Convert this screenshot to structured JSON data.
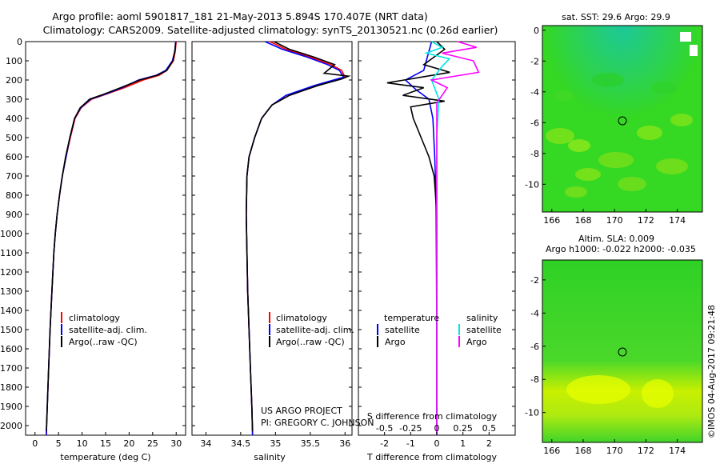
{
  "header": {
    "title_line1": "Argo profile: aoml 5901817_181 21-May-2013 5.894S 170.407E (NRT data)",
    "title_line2": "Climatology: CARS2009. Satellite-adjusted climatology: synTS_20130521.nc (0.26d earlier)"
  },
  "colors": {
    "climatology": "#ff0000",
    "satellite": "#0000ff",
    "argo": "#000000",
    "salinity_satellite": "#00e5e5",
    "salinity_argo": "#ff00ff"
  },
  "icons": {
    "legend_marker": "short-vertical-bar",
    "float_position": "circle-marker"
  },
  "panel_temperature": {
    "xlabel": "temperature (deg C)",
    "xticks": [
      "0",
      "5",
      "10",
      "15",
      "20",
      "25",
      "30"
    ],
    "yticks": [
      "0",
      "100",
      "200",
      "300",
      "400",
      "500",
      "600",
      "700",
      "800",
      "900",
      "1000",
      "1100",
      "1200",
      "1300",
      "1400",
      "1500",
      "1600",
      "1700",
      "1800",
      "1900",
      "2000"
    ],
    "legend": [
      "climatology",
      "satellite-adj. clim.",
      "Argo(..raw -QC)"
    ]
  },
  "panel_salinity": {
    "xlabel": "salinity",
    "xticks": [
      "34",
      "34.5",
      "35",
      "35.5",
      "36"
    ],
    "legend": [
      "climatology",
      "satellite-adj. clim.",
      "Argo(..raw -QC)"
    ],
    "credit_line1": "US ARGO PROJECT",
    "credit_line2": "PI: GREGORY C. JOHNSON"
  },
  "panel_difference": {
    "xlabel_bottom": "T difference from climatology",
    "xlabel_top": "S difference from climatology",
    "xticks_t": [
      "-2",
      "-1",
      "0",
      "1",
      "2"
    ],
    "xticks_s": [
      "-0.5",
      "-0.25",
      "0",
      "0.25",
      "0.5"
    ],
    "legend_temperature_title": "temperature",
    "legend_salinity_title": "salinity",
    "legend_temperature": [
      "satellite",
      "Argo"
    ],
    "legend_salinity": [
      "satellite",
      "Argo"
    ]
  },
  "map_sst": {
    "title": "sat. SST: 29.6  Argo: 29.9",
    "xticks": [
      "166",
      "168",
      "170",
      "172",
      "174"
    ],
    "yticks": [
      "0",
      "-2",
      "-4",
      "-6",
      "-8",
      "-10"
    ]
  },
  "map_sla": {
    "title_line1": "Altim. SLA: 0.009",
    "title_line2": "Argo h1000: -0.022 h2000: -0.035",
    "xticks": [
      "166",
      "168",
      "170",
      "172",
      "174"
    ],
    "yticks": [
      "-2",
      "-4",
      "-6",
      "-8",
      "-10"
    ]
  },
  "footer": {
    "timestamp": "©IMOS 04-Aug-2017 09:21:48"
  },
  "chart_data": [
    {
      "type": "line",
      "title": "",
      "xlabel": "temperature (deg C)",
      "ylabel": "",
      "xlim": [
        -2,
        32
      ],
      "ylim": [
        2050,
        0
      ],
      "series": [
        {
          "name": "climatology",
          "points": [
            [
              30,
              0
            ],
            [
              29.8,
              50
            ],
            [
              29.4,
              100
            ],
            [
              28,
              150
            ],
            [
              26.4,
              175
            ],
            [
              23,
              200
            ],
            [
              19,
              240
            ],
            [
              15,
              275
            ],
            [
              12,
              300
            ],
            [
              9.8,
              345
            ],
            [
              8.5,
              400
            ],
            [
              7.5,
              500
            ],
            [
              6.6,
              600
            ],
            [
              5.8,
              700
            ],
            [
              5.2,
              800
            ],
            [
              4.7,
              900
            ],
            [
              4.3,
              1000
            ],
            [
              4,
              1100
            ],
            [
              3.6,
              1300
            ],
            [
              3.2,
              1500
            ],
            [
              2.9,
              1700
            ],
            [
              2.6,
              1900
            ],
            [
              2.4,
              2050
            ]
          ]
        },
        {
          "name": "satellite-adj. clim.",
          "points": [
            [
              29.9,
              0
            ],
            [
              29.7,
              50
            ],
            [
              29.2,
              100
            ],
            [
              27.8,
              150
            ],
            [
              25.8,
              175
            ],
            [
              22,
              200
            ],
            [
              18.5,
              240
            ],
            [
              14.8,
              275
            ],
            [
              11.8,
              300
            ],
            [
              9.7,
              345
            ],
            [
              8.4,
              400
            ],
            [
              7.4,
              500
            ],
            [
              6.6,
              600
            ],
            [
              5.8,
              700
            ],
            [
              5.2,
              800
            ],
            [
              4.7,
              900
            ],
            [
              4.3,
              1000
            ],
            [
              4,
              1100
            ],
            [
              3.6,
              1300
            ],
            [
              3.2,
              1500
            ],
            [
              2.9,
              1700
            ],
            [
              2.6,
              1900
            ],
            [
              2.4,
              2050
            ]
          ]
        },
        {
          "name": "Argo(..raw -QC)",
          "points": [
            [
              29.9,
              5
            ],
            [
              29.7,
              50
            ],
            [
              29.3,
              100
            ],
            [
              28,
              150
            ],
            [
              26,
              175
            ],
            [
              22.3,
              200
            ],
            [
              18.2,
              240
            ],
            [
              14.5,
              275
            ],
            [
              11.6,
              300
            ],
            [
              9.6,
              345
            ],
            [
              8.4,
              400
            ],
            [
              7.4,
              500
            ],
            [
              6.5,
              600
            ],
            [
              5.8,
              700
            ],
            [
              5.2,
              800
            ],
            [
              4.7,
              900
            ],
            [
              4.3,
              1000
            ],
            [
              4,
              1100
            ],
            [
              3.6,
              1300
            ],
            [
              3.2,
              1500
            ],
            [
              2.9,
              1700
            ],
            [
              2.6,
              1900
            ],
            [
              2.4,
              2030
            ]
          ]
        }
      ]
    },
    {
      "type": "line",
      "title": "",
      "xlabel": "salinity",
      "ylabel": "",
      "xlim": [
        33.8,
        36.1
      ],
      "ylim": [
        2050,
        0
      ],
      "series": [
        {
          "name": "climatology",
          "points": [
            [
              34.92,
              0
            ],
            [
              35.15,
              40
            ],
            [
              35.5,
              80
            ],
            [
              35.8,
              120
            ],
            [
              35.95,
              150
            ],
            [
              36.0,
              185
            ],
            [
              35.6,
              230
            ],
            [
              35.2,
              280
            ],
            [
              34.95,
              330
            ],
            [
              34.8,
              400
            ],
            [
              34.7,
              500
            ],
            [
              34.62,
              600
            ],
            [
              34.59,
              700
            ],
            [
              34.58,
              900
            ],
            [
              34.59,
              1100
            ],
            [
              34.6,
              1300
            ],
            [
              34.62,
              1500
            ],
            [
              34.64,
              1700
            ],
            [
              34.66,
              1900
            ],
            [
              34.67,
              2050
            ]
          ]
        },
        {
          "name": "satellite-adj. clim.",
          "points": [
            [
              34.85,
              0
            ],
            [
              35.1,
              40
            ],
            [
              35.45,
              80
            ],
            [
              35.75,
              120
            ],
            [
              35.92,
              150
            ],
            [
              35.98,
              185
            ],
            [
              35.55,
              230
            ],
            [
              35.15,
              280
            ],
            [
              34.95,
              330
            ],
            [
              34.8,
              400
            ],
            [
              34.7,
              500
            ],
            [
              34.62,
              600
            ],
            [
              34.59,
              700
            ],
            [
              34.58,
              900
            ],
            [
              34.59,
              1100
            ],
            [
              34.6,
              1300
            ],
            [
              34.62,
              1500
            ],
            [
              34.64,
              1700
            ],
            [
              34.66,
              1900
            ],
            [
              34.67,
              2050
            ]
          ]
        },
        {
          "name": "Argo(..raw -QC)",
          "points": [
            [
              34.98,
              0
            ],
            [
              35.2,
              40
            ],
            [
              35.55,
              80
            ],
            [
              35.85,
              120
            ],
            [
              35.7,
              165
            ],
            [
              36.05,
              180
            ],
            [
              35.95,
              195
            ],
            [
              35.6,
              230
            ],
            [
              35.2,
              280
            ],
            [
              34.95,
              330
            ],
            [
              34.8,
              400
            ],
            [
              34.7,
              500
            ],
            [
              34.62,
              600
            ],
            [
              34.59,
              700
            ],
            [
              34.58,
              900
            ],
            [
              34.59,
              1100
            ],
            [
              34.6,
              1300
            ],
            [
              34.62,
              1500
            ],
            [
              34.64,
              1700
            ],
            [
              34.66,
              1900
            ],
            [
              34.67,
              2030
            ]
          ]
        }
      ]
    },
    {
      "type": "line",
      "title": "",
      "xlabel": "T difference from climatology",
      "ylabel": "",
      "xlim": [
        -3,
        3
      ],
      "ylim": [
        2050,
        0
      ],
      "xlim_salinity": [
        -0.75,
        0.75
      ],
      "series": [
        {
          "name": "temperature satellite",
          "points": [
            [
              -0.2,
              0
            ],
            [
              -0.3,
              50
            ],
            [
              -0.4,
              100
            ],
            [
              -0.5,
              150
            ],
            [
              -1.2,
              200
            ],
            [
              -0.8,
              250
            ],
            [
              -0.3,
              300
            ],
            [
              -0.15,
              400
            ],
            [
              -0.08,
              600
            ],
            [
              -0.03,
              800
            ],
            [
              -0.02,
              1000
            ],
            [
              0,
              1500
            ],
            [
              0,
              2050
            ]
          ]
        },
        {
          "name": "temperature Argo",
          "points": [
            [
              0,
              0
            ],
            [
              0.3,
              40
            ],
            [
              -0.5,
              120
            ],
            [
              0.5,
              160
            ],
            [
              -1.9,
              215
            ],
            [
              -0.5,
              240
            ],
            [
              -1.3,
              280
            ],
            [
              0.3,
              310
            ],
            [
              -1.0,
              340
            ],
            [
              -0.9,
              400
            ],
            [
              -0.6,
              500
            ],
            [
              -0.3,
              600
            ],
            [
              -0.1,
              700
            ],
            [
              -0.05,
              800
            ],
            [
              0,
              900
            ],
            [
              0,
              1500
            ],
            [
              0,
              2050
            ]
          ]
        },
        {
          "name": "salinity satellite",
          "points": [
            [
              -0.05,
              0
            ],
            [
              0.05,
              30
            ],
            [
              -0.1,
              60
            ],
            [
              0.12,
              90
            ],
            [
              0.05,
              130
            ],
            [
              -0.05,
              200
            ],
            [
              0.02,
              300
            ],
            [
              0,
              500
            ],
            [
              0,
              2050
            ]
          ]
        },
        {
          "name": "salinity Argo",
          "points": [
            [
              0.2,
              0
            ],
            [
              0.38,
              30
            ],
            [
              0.05,
              60
            ],
            [
              0.35,
              100
            ],
            [
              0.4,
              160
            ],
            [
              -0.05,
              200
            ],
            [
              0.1,
              240
            ],
            [
              0,
              320
            ],
            [
              0,
              400
            ],
            [
              0,
              2050
            ]
          ]
        }
      ]
    }
  ]
}
